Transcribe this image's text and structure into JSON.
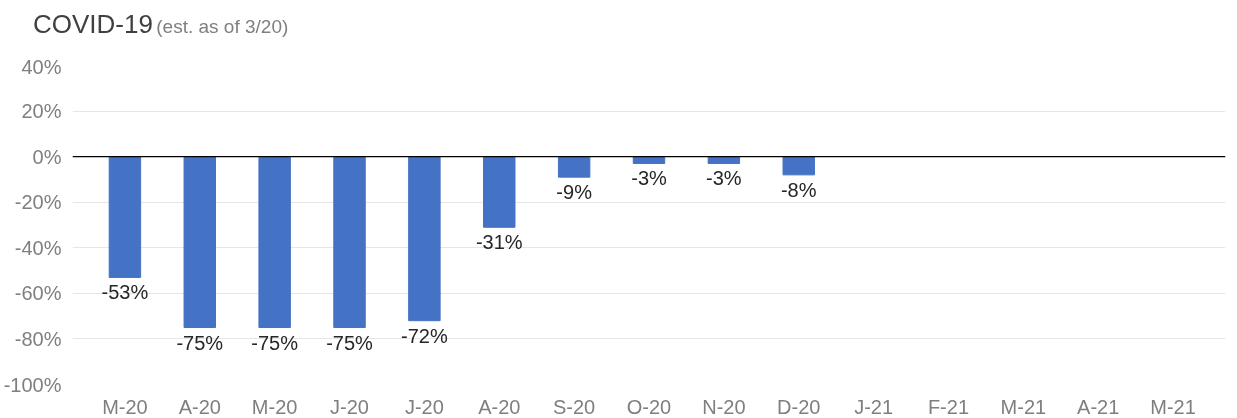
{
  "chart_data": {
    "type": "bar",
    "title": "COVID-19",
    "subtitle": "(est. as of 3/20)",
    "categories": [
      "M-20",
      "A-20",
      "M-20",
      "J-20",
      "J-20",
      "A-20",
      "S-20",
      "O-20",
      "N-20",
      "D-20",
      "J-21",
      "F-21",
      "M-21",
      "A-21",
      "M-21"
    ],
    "values": [
      -53,
      -75,
      -75,
      -75,
      -72,
      -31,
      -9,
      -3,
      -3,
      -8,
      null,
      null,
      null,
      null,
      null
    ],
    "value_labels": [
      "-53%",
      "-75%",
      "-75%",
      "-75%",
      "-72%",
      "-31%",
      "-9%",
      "-3%",
      "-3%",
      "-8%",
      null,
      null,
      null,
      null,
      null
    ],
    "color": "#4472c4",
    "ylim": [
      -100,
      40
    ],
    "yticks": [
      {
        "value": -100,
        "label": "-100%"
      },
      {
        "value": -80,
        "label": "-80%"
      },
      {
        "value": -60,
        "label": "-60%"
      },
      {
        "value": -40,
        "label": "-40%"
      },
      {
        "value": -20,
        "label": "-20%"
      },
      {
        "value": 0,
        "label": "0%"
      },
      {
        "value": 20,
        "label": "20%"
      },
      {
        "value": 40,
        "label": "40%"
      }
    ],
    "grid": "y"
  }
}
